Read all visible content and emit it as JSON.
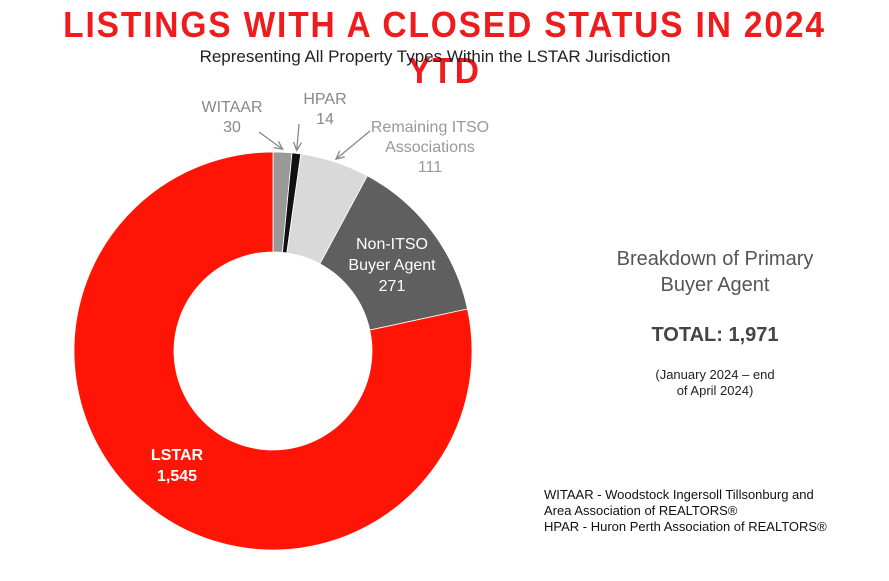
{
  "title": "LISTINGS WITH A CLOSED STATUS IN 2024 YTD",
  "subtitle": "Representing All Property Types Within the LSTAR Jurisdiction",
  "side_title_line1": "Breakdown of Primary",
  "side_title_line2": "Buyer Agent",
  "total": "TOTAL: 1,971",
  "period_line1": "(January 2024 – end",
  "period_line2": "of April 2024)",
  "notes": [
    "WITAAR - Woodstock Ingersoll Tillsonburg and",
    "Area Association of REALTORS®",
    "HPAR - Huron Perth Association of REALTORS®"
  ],
  "chart_data": {
    "type": "pie",
    "style": "donut",
    "categories": [
      "WITAAR",
      "HPAR",
      "Remaining ITSO Associations",
      "Non-ITSO Buyer Agent",
      "LSTAR"
    ],
    "values": [
      30,
      14,
      111,
      271,
      1545
    ],
    "value_labels": [
      "30",
      "14",
      "111",
      "271",
      "1,545"
    ],
    "label_lines": [
      [
        "WITAAR",
        "30"
      ],
      [
        "HPAR",
        "14"
      ],
      [
        "Remaining ITSO",
        "Associations",
        "111"
      ],
      [
        "Non-ITSO",
        "Buyer Agent",
        "271"
      ],
      [
        "LSTAR",
        "1,545"
      ]
    ],
    "colors": [
      "#999999",
      "#111111",
      "#d9d9d9",
      "#5f5f5f",
      "#ff1405"
    ],
    "total": 1971
  }
}
